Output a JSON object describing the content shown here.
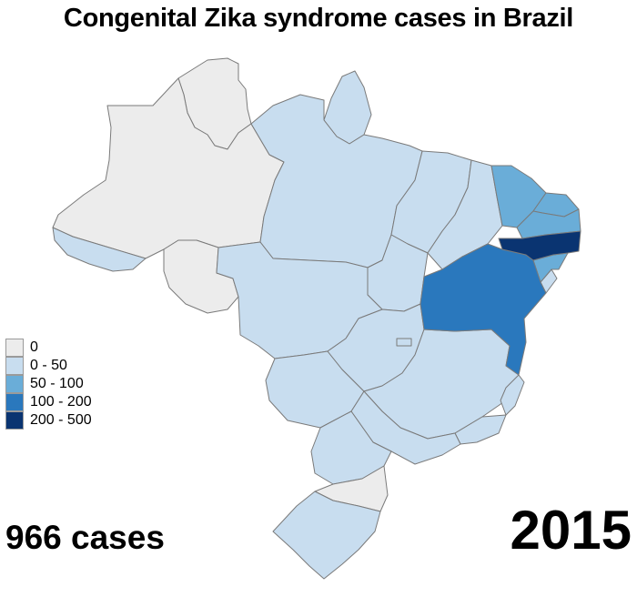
{
  "title": "Congenital Zika syndrome cases in Brazil",
  "cases": "966 cases",
  "year": "2015",
  "colors": {
    "c0": "#ececec",
    "c1": "#c8ddef",
    "c2": "#6aadd8",
    "c3": "#2a78bd",
    "c4": "#0a3471",
    "border": "#7a7a7a"
  },
  "legend": [
    {
      "label": "0",
      "color": "#ececec"
    },
    {
      "label": "0 - 50",
      "color": "#c8ddef"
    },
    {
      "label": "50 - 100",
      "color": "#6aadd8"
    },
    {
      "label": "100 - 200",
      "color": "#2a78bd"
    },
    {
      "label": "200 - 500",
      "color": "#0a3471"
    }
  ]
}
